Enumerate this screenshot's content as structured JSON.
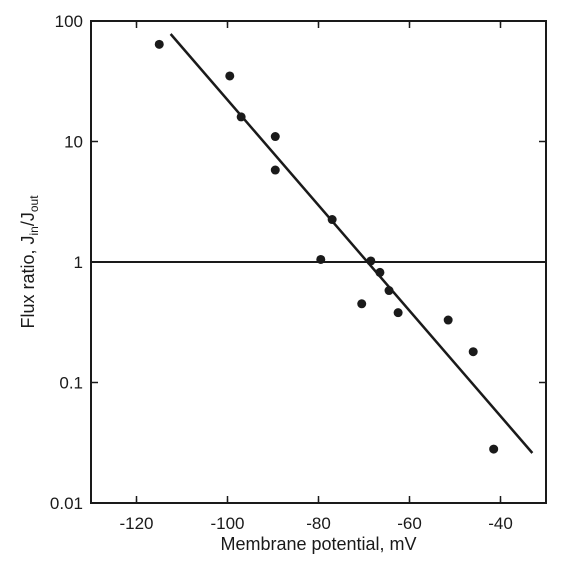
{
  "chart_data": {
    "type": "scatter",
    "title": "",
    "xlabel": "Membrane potential, mV",
    "ylabel": {
      "prefix": "Flux ratio, J",
      "sub1": "in",
      "mid": "/J",
      "sub2": "out"
    },
    "xlim": [
      -130,
      -30
    ],
    "ylim": [
      0.01,
      100
    ],
    "yscale": "log",
    "grid": false,
    "legend": "none",
    "x_ticks": [
      -120,
      -100,
      -80,
      -60,
      -40
    ],
    "x_tick_labels": [
      "-120",
      "-100",
      "-80",
      "-60",
      "-40"
    ],
    "y_ticks": [
      100,
      10,
      1,
      0.1,
      0.01
    ],
    "y_tick_labels": [
      "100",
      "10",
      "1",
      "0.1",
      "0.01"
    ],
    "reference_line_y": 1,
    "points": [
      {
        "x": -115,
        "y": 64
      },
      {
        "x": -99.5,
        "y": 35
      },
      {
        "x": -97,
        "y": 16
      },
      {
        "x": -89.5,
        "y": 11
      },
      {
        "x": -89.5,
        "y": 5.8
      },
      {
        "x": -77,
        "y": 2.25
      },
      {
        "x": -79.5,
        "y": 1.05
      },
      {
        "x": -68.5,
        "y": 1.02
      },
      {
        "x": -66.5,
        "y": 0.82
      },
      {
        "x": -64.5,
        "y": 0.58
      },
      {
        "x": -62.5,
        "y": 0.38
      },
      {
        "x": -70.5,
        "y": 0.45
      },
      {
        "x": -51.5,
        "y": 0.33
      },
      {
        "x": -46,
        "y": 0.18
      },
      {
        "x": -41.5,
        "y": 0.028
      }
    ],
    "fit_line": [
      {
        "x": -112.5,
        "y": 78
      },
      {
        "x": -33,
        "y": 0.026
      }
    ],
    "colors": {
      "ink": "#1a1a1a",
      "background": "#ffffff"
    }
  }
}
